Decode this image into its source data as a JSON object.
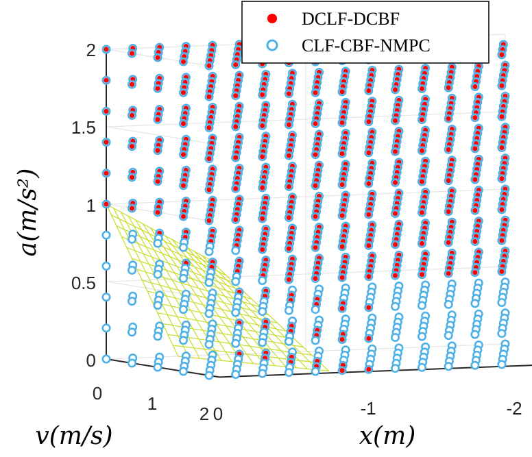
{
  "chart_data": {
    "type": "scatter",
    "view": "3d",
    "title": "",
    "axes": {
      "x": {
        "label": "x(m)",
        "ticks": [
          "0",
          "-1",
          "-2"
        ],
        "range": [
          0,
          -2
        ]
      },
      "v": {
        "label": "v(m/s)",
        "ticks": [
          "0",
          "1",
          "2"
        ],
        "range": [
          0,
          2
        ]
      },
      "a": {
        "label": "a(m/s²)",
        "ticks": [
          "0",
          "0.5",
          "1",
          "1.5",
          "2"
        ],
        "range": [
          0,
          2
        ]
      }
    },
    "grid": true,
    "legend": {
      "position": "top-right"
    },
    "series": [
      {
        "name": "DCLF-DCBF",
        "marker": "filled-circle",
        "color": "#ff0000"
      },
      {
        "name": "CLF-CBF-NMPC",
        "marker": "open-circle",
        "color": "#4db0e6"
      }
    ],
    "surface": {
      "color": "#c8dc2a",
      "x_range": [
        0,
        -0.6
      ],
      "v_range": [
        0,
        2
      ],
      "a_range": [
        0,
        1
      ]
    },
    "sample_grid": {
      "x": [
        0,
        -0.133,
        -0.267,
        -0.4,
        -0.533,
        -0.667,
        -0.8,
        -0.933,
        -1.067,
        -1.2,
        -1.333,
        -1.467,
        -1.6,
        -1.733,
        -1.867,
        -2
      ],
      "v": [
        0,
        0.5,
        1,
        1.5,
        2
      ],
      "a": [
        0,
        0.2,
        0.4,
        0.6,
        0.8,
        1,
        1.2,
        1.4,
        1.6,
        1.8,
        2
      ]
    }
  }
}
